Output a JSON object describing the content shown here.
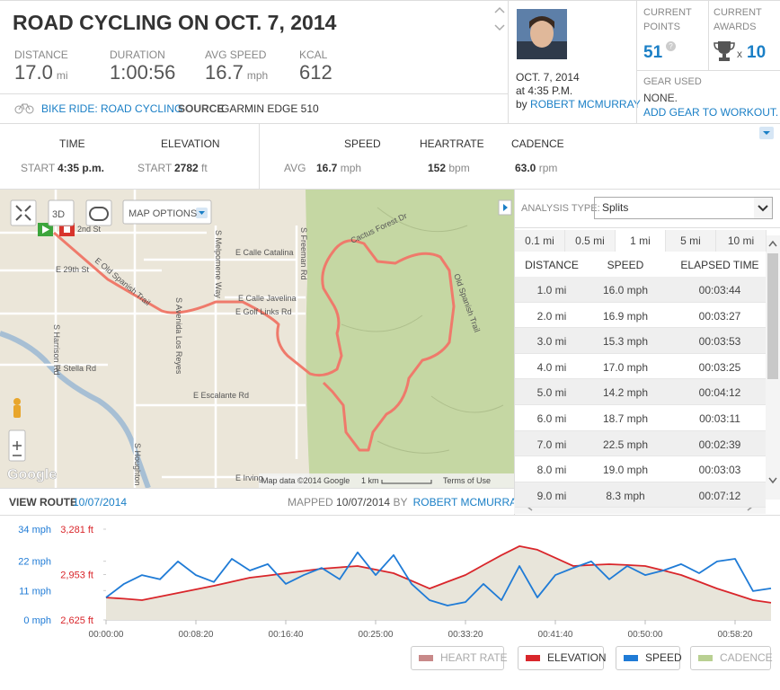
{
  "header": {
    "title": "ROAD CYCLING ON OCT. 7, 2014",
    "stats": [
      {
        "label": "DISTANCE",
        "value": "17.0",
        "unit": "mi"
      },
      {
        "label": "DURATION",
        "value": "1:00:56"
      },
      {
        "label": "AVG SPEED",
        "value": "16.7",
        "unit": "mph"
      },
      {
        "label": "KCAL",
        "value": "612"
      }
    ],
    "activity": "BIKE RIDE: ROAD CYCLING",
    "source_label": "SOURCE",
    "source": "GARMIN EDGE 510"
  },
  "profile": {
    "date": "OCT. 7, 2014",
    "time": "at 4:35 P.M.",
    "by": "by",
    "name": "ROBERT MCMURRAY"
  },
  "points": {
    "label": "CURRENT POINTS",
    "value": "51",
    "help": "?"
  },
  "awards": {
    "label": "CURRENT AWARDS",
    "times": "x",
    "value": "10"
  },
  "gear": {
    "label": "GEAR USED",
    "value": "NONE.",
    "link": "ADD GEAR TO WORKOUT."
  },
  "summary": {
    "time": {
      "label": "TIME",
      "start_label": "START",
      "start": "4:35 p.m."
    },
    "elevation": {
      "label": "ELEVATION",
      "start_label": "START",
      "start": "2782",
      "unit": "ft"
    },
    "avg_label": "AVG",
    "speed": {
      "label": "SPEED",
      "value": "16.7",
      "unit": "mph"
    },
    "heartrate": {
      "label": "HEARTRATE",
      "value": "152",
      "unit": "bpm"
    },
    "cadence": {
      "label": "CADENCE",
      "value": "63.0",
      "unit": "rpm"
    }
  },
  "map": {
    "options": "MAP OPTIONS",
    "three_d": "3D",
    "labels": [
      "2nd St",
      "E 29th St",
      "E Old Spanish Trail",
      "S Harrison Rd",
      "E Stella Rd",
      "S Avenida Los Reyes",
      "S Melpomene Way",
      "E Calle Catalina",
      "E Calle Javelina",
      "E Golf Links Rd",
      "S Freeman Rd",
      "E Escalante Rd",
      "S Houghton",
      "E Irving",
      "Cactus Forest Dr",
      "Old Spanish Trail"
    ],
    "attribution": "Map data ©2014 Google",
    "scale": "1 km",
    "terms": "Terms of Use",
    "logo": "Google"
  },
  "route_footer": {
    "view_route": "VIEW ROUTE",
    "date": "10/07/2014",
    "mapped": "MAPPED",
    "mapped_date": "10/07/2014",
    "by": "BY",
    "name": "ROBERT MCMURRAY"
  },
  "analysis": {
    "label": "ANALYSIS TYPE:",
    "selected": "Splits",
    "tabs": [
      "0.1 mi",
      "0.5 mi",
      "1 mi",
      "5 mi",
      "10 mi"
    ],
    "columns": [
      "DISTANCE",
      "SPEED",
      "ELAPSED TIME"
    ],
    "rows": [
      [
        "1.0 mi",
        "16.0 mph",
        "00:03:44"
      ],
      [
        "2.0 mi",
        "16.9 mph",
        "00:03:27"
      ],
      [
        "3.0 mi",
        "15.3 mph",
        "00:03:53"
      ],
      [
        "4.0 mi",
        "17.0 mph",
        "00:03:25"
      ],
      [
        "5.0 mi",
        "14.2 mph",
        "00:04:12"
      ],
      [
        "6.0 mi",
        "18.7 mph",
        "00:03:11"
      ],
      [
        "7.0 mi",
        "22.5 mph",
        "00:02:39"
      ],
      [
        "8.0 mi",
        "19.0 mph",
        "00:03:03"
      ],
      [
        "9.0 mi",
        "8.3 mph",
        "00:07:12"
      ]
    ]
  },
  "chart_data": {
    "type": "line",
    "x": [
      0,
      100,
      200,
      300,
      400,
      500,
      600,
      700,
      800,
      900,
      1000,
      1100,
      1200,
      1300,
      1400,
      1500,
      1600,
      1700,
      1800,
      1900,
      2000,
      2100,
      2200,
      2300,
      2400,
      2500,
      2600,
      2700,
      2800,
      2900,
      3000,
      3100,
      3200,
      3300,
      3400,
      3500,
      3600,
      3700
    ],
    "xlim": [
      0,
      3700
    ],
    "xticks": [
      {
        "value": 0,
        "label": "00:00:00"
      },
      {
        "value": 500,
        "label": "00:08:20"
      },
      {
        "value": 1000,
        "label": "00:16:40"
      },
      {
        "value": 1500,
        "label": "00:25:00"
      },
      {
        "value": 2000,
        "label": "00:33:20"
      },
      {
        "value": 2500,
        "label": "00:41:40"
      },
      {
        "value": 3000,
        "label": "00:50:00"
      },
      {
        "value": 3500,
        "label": "00:58:20"
      }
    ],
    "ylim": [
      0,
      34
    ],
    "yticks": [
      {
        "value": 0,
        "label": "0 mph"
      },
      {
        "value": 11,
        "label": "11 mph"
      },
      {
        "value": 22,
        "label": "22 mph"
      },
      {
        "value": 34,
        "label": "34 mph"
      }
    ],
    "y2lim": [
      2625,
      3281
    ],
    "y2ticks": [
      {
        "value": 2625,
        "label": "2,625 ft"
      },
      {
        "value": 2953,
        "label": "2,953 ft"
      },
      {
        "value": 3281,
        "label": "3,281 ft"
      }
    ],
    "series": [
      {
        "name": "ELEVATION",
        "color": "#d9262b",
        "axis": "y2",
        "values": [
          2787,
          2778,
          2768,
          2794,
          2820,
          2846,
          2872,
          2901,
          2930,
          2946,
          2963,
          2979,
          2995,
          3005,
          3015,
          2989,
          2963,
          2908,
          2852,
          2901,
          2950,
          3022,
          3093,
          3158,
          3132,
          3074,
          3015,
          3022,
          3028,
          3022,
          3015,
          2983,
          2950,
          2901,
          2852,
          2810,
          2768,
          2749
        ]
      },
      {
        "name": "SPEED",
        "color": "#1f7bd6",
        "values": [
          8.4,
          13.5,
          16.8,
          15.2,
          21.9,
          16.8,
          14.2,
          22.9,
          18.5,
          20.9,
          13.5,
          16.8,
          19.5,
          15.2,
          25.3,
          16.8,
          24.3,
          13.5,
          7.4,
          5.4,
          6.7,
          13.5,
          7.4,
          20.2,
          8.4,
          16.8,
          19.5,
          21.9,
          15.2,
          20.2,
          16.8,
          18.5,
          20.9,
          17.5,
          21.9,
          22.9,
          10.8,
          11.8
        ]
      }
    ],
    "legend": [
      {
        "name": "HEART RATE",
        "color": "#a33a3a",
        "active": false
      },
      {
        "name": "ELEVATION",
        "color": "#d9262b",
        "active": true
      },
      {
        "name": "SPEED",
        "color": "#1f7bd6",
        "active": true
      },
      {
        "name": "CADENCE",
        "color": "#8ab04a",
        "active": false
      }
    ]
  }
}
